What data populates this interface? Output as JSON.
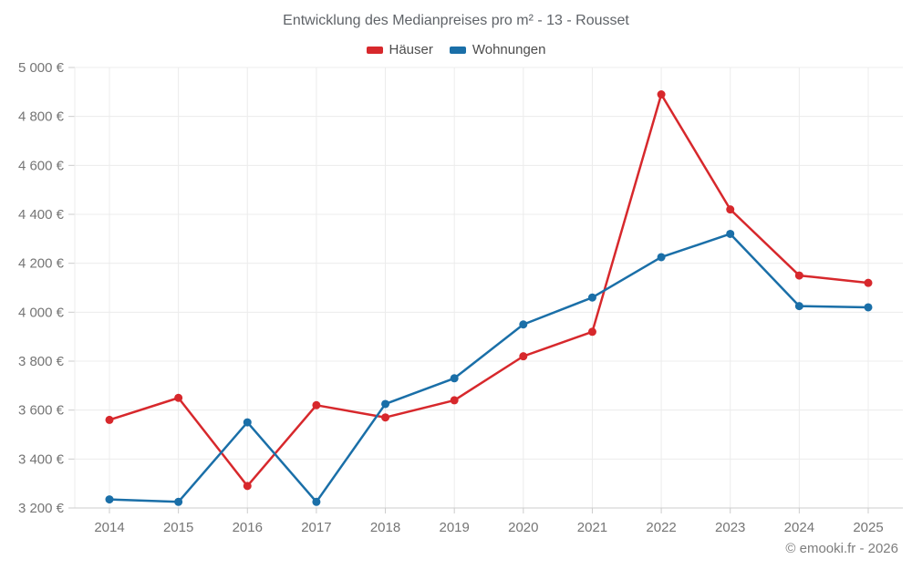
{
  "title": "Entwicklung des Medianpreises pro m² - 13 - Rousset",
  "footer": {
    "copyright": "© emooki.fr - 2026"
  },
  "colors": {
    "grid": "#ececec",
    "axis": "#cccccc",
    "tick": "#cccccc",
    "axis_label": "#757575",
    "haeuser": "#d7282c",
    "wohnungen": "#1a6fa8"
  },
  "chart_data": {
    "type": "line",
    "categories": [
      "2014",
      "2015",
      "2016",
      "2017",
      "2018",
      "2019",
      "2020",
      "2021",
      "2022",
      "2023",
      "2024",
      "2025"
    ],
    "series": [
      {
        "name": "Häuser",
        "color": "#d7282c",
        "values": [
          3560,
          3650,
          3290,
          3620,
          3570,
          3640,
          3820,
          3920,
          4890,
          4420,
          4150,
          4120
        ]
      },
      {
        "name": "Wohnungen",
        "color": "#1a6fa8",
        "values": [
          3235,
          3225,
          3550,
          3225,
          3625,
          3730,
          3950,
          4060,
          4225,
          4320,
          4025,
          4020
        ]
      }
    ],
    "title": "Entwicklung des Medianpreises pro m² - 13 - Rousset",
    "xlabel": "",
    "ylabel": "",
    "ylim": [
      3200,
      5000
    ],
    "ytick_step": 200,
    "y_tick_labels": [
      "3 200 €",
      "3 400 €",
      "3 600 €",
      "3 800 €",
      "4 000 €",
      "4 200 €",
      "4 400 €",
      "4 600 €",
      "4 800 €",
      "5 000 €"
    ],
    "grid": true,
    "legend_position": "top"
  }
}
